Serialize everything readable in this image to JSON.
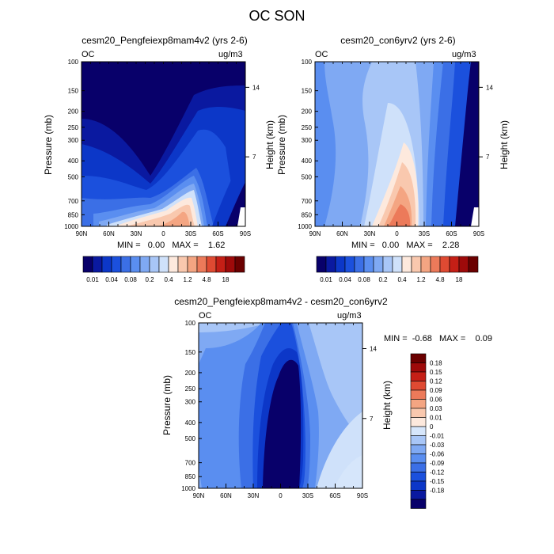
{
  "title": "OC SON",
  "panels": [
    {
      "title": "cesm20_Pengfeiexp8mam4v2 (yrs 2-6)",
      "var_label": "OC",
      "units": "ug/m3",
      "ylabel": "Pressure (mb)",
      "ylabel_right": "Height (km)",
      "minmax": "MIN =   0.00   MAX =    1.62"
    },
    {
      "title": "cesm20_con6yrv2 (yrs 2-6)",
      "var_label": "OC",
      "units": "ug/m3",
      "ylabel": "Pressure (mb)",
      "ylabel_right": "Height (km)",
      "minmax": "MIN =   0.00   MAX =    2.28"
    },
    {
      "title": "cesm20_Pengfeiexp8mam4v2 - cesm20_con6yrv2",
      "var_label": "OC",
      "units": "ug/m3",
      "ylabel": "Pressure (mb)",
      "ylabel_right": "Height (km)",
      "minmax": "MIN =  -0.68   MAX =    0.09"
    }
  ],
  "chart_data": [
    {
      "type": "heatmap",
      "title": "cesm20_Pengfeiexp8mam4v2 (yrs 2-6)",
      "xlabel": "",
      "ylabel": "Pressure (mb)",
      "ylabel_right": "Height (km)",
      "x_ticks": [
        "90N",
        "60N",
        "30N",
        "0",
        "30S",
        "60S",
        "90S"
      ],
      "x_values": [
        90,
        60,
        30,
        0,
        -30,
        -60,
        -90
      ],
      "y_ticks": [
        100,
        150,
        200,
        250,
        300,
        400,
        500,
        700,
        850,
        1000
      ],
      "ylim": [
        1000,
        100
      ],
      "y_right_ticks": [
        14,
        7
      ],
      "colorbar_ticks": [
        "0.01",
        "0.04",
        "0.08",
        "0.2",
        "0.4",
        "1.2",
        "4.8",
        "18"
      ],
      "min": 0.0,
      "max": 1.62
    },
    {
      "type": "heatmap",
      "title": "cesm20_con6yrv2 (yrs 2-6)",
      "xlabel": "",
      "ylabel": "Pressure (mb)",
      "ylabel_right": "Height (km)",
      "x_ticks": [
        "90N",
        "60N",
        "30N",
        "0",
        "30S",
        "60S",
        "90S"
      ],
      "x_values": [
        90,
        60,
        30,
        0,
        -30,
        -60,
        -90
      ],
      "y_ticks": [
        100,
        150,
        200,
        250,
        300,
        400,
        500,
        700,
        850,
        1000
      ],
      "ylim": [
        1000,
        100
      ],
      "y_right_ticks": [
        14,
        7
      ],
      "colorbar_ticks": [
        "0.01",
        "0.04",
        "0.08",
        "0.2",
        "0.4",
        "1.2",
        "4.8",
        "18"
      ],
      "min": 0.0,
      "max": 2.28
    },
    {
      "type": "heatmap",
      "title": "cesm20_Pengfeiexp8mam4v2 - cesm20_con6yrv2",
      "xlabel": "",
      "ylabel": "Pressure (mb)",
      "ylabel_right": "Height (km)",
      "x_ticks": [
        "90N",
        "60N",
        "30N",
        "0",
        "30S",
        "60S",
        "90S"
      ],
      "x_values": [
        90,
        60,
        30,
        0,
        -30,
        -60,
        -90
      ],
      "y_ticks": [
        100,
        150,
        200,
        250,
        300,
        400,
        500,
        700,
        850,
        1000
      ],
      "ylim": [
        1000,
        100
      ],
      "y_right_ticks": [
        14,
        7
      ],
      "colorbar_ticks": [
        "0.18",
        "0.15",
        "0.12",
        "0.09",
        "0.06",
        "0.03",
        "0.01",
        "0",
        "-0.01",
        "-0.03",
        "-0.06",
        "-0.09",
        "-0.12",
        "-0.15",
        "-0.18"
      ],
      "min": -0.68,
      "max": 0.09
    }
  ],
  "colors": {
    "abs_scale": [
      "#08006a",
      "#0a19a0",
      "#0c37c8",
      "#1b50dd",
      "#3b6fe6",
      "#5a8ef0",
      "#7fa9f3",
      "#a8c6f7",
      "#cfe1fa",
      "#fde9dd",
      "#f9c8ae",
      "#f4a582",
      "#ec7a5a",
      "#df4a32",
      "#c51f16",
      "#9e0a0a",
      "#6b0000"
    ],
    "diff_scale": [
      "#08006a",
      "#0a19a0",
      "#0c37c8",
      "#1b50dd",
      "#3b6fe6",
      "#5a8ef0",
      "#7fa9f3",
      "#a8c6f7",
      "#d6e6fb",
      "#fde9dd",
      "#f9c8ae",
      "#f4a582",
      "#ec7a5a",
      "#df4a32",
      "#c51f16",
      "#9e0a0a",
      "#6b0000"
    ]
  }
}
